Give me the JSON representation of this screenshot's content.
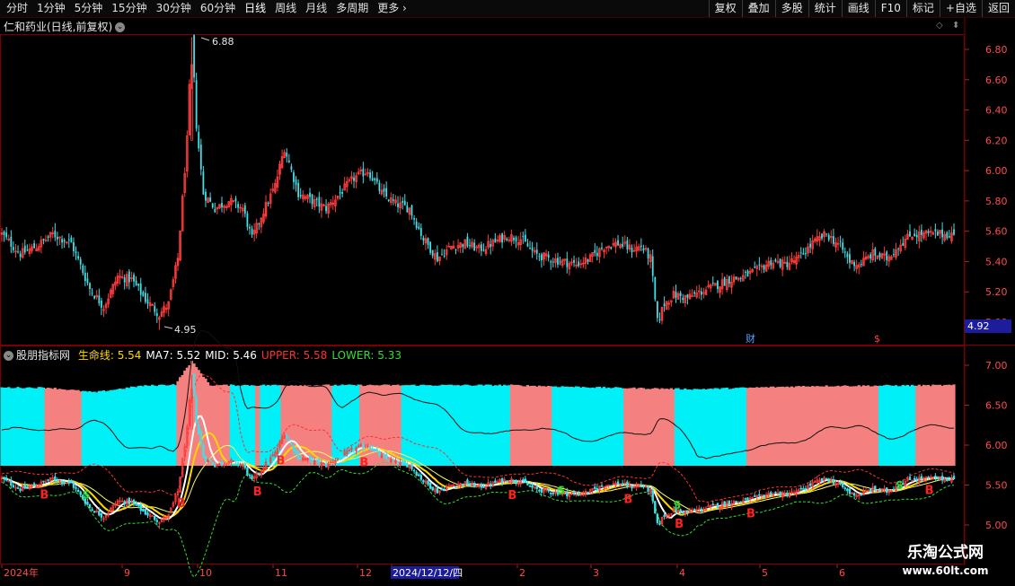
{
  "toolbar": {
    "periods": [
      "分时",
      "1分钟",
      "5分钟",
      "15分钟",
      "30分钟",
      "60分钟",
      "日线",
      "周线",
      "月线",
      "多周期",
      "更多"
    ],
    "active_period": "日线",
    "more_chevron": "›",
    "actions": [
      "复权",
      "叠加",
      "多股",
      "统计",
      "画线",
      "F10",
      "标记",
      "+自选",
      "返回"
    ]
  },
  "header": {
    "stock_title": "仁和药业(日线,前复权)",
    "dropdown_icon": "chevron-down-icon",
    "high_label": "6.88",
    "low_label": "4.95",
    "last_price": "4.92",
    "event_markers": [
      "财",
      "$"
    ]
  },
  "indicator": {
    "name": "股朋指标网",
    "values": [
      {
        "label": "生命线:",
        "value": "5.54",
        "color": "#ffd700"
      },
      {
        "label": "MA7:",
        "value": "5.52",
        "color": "#ffffff"
      },
      {
        "label": "MID:",
        "value": "5.46",
        "color": "#ffffff"
      },
      {
        "label": "UPPER:",
        "value": "5.58",
        "color": "#ff3030"
      },
      {
        "label": "LOWER:",
        "value": "5.33",
        "color": "#30e030"
      }
    ],
    "signal_B": "B",
    "signal_S": "S"
  },
  "x_axis": {
    "labels": [
      "2024年",
      "9",
      "10",
      "11",
      "12",
      "2024/12/12/四",
      "2",
      "3",
      "4",
      "5",
      "6"
    ]
  },
  "colors": {
    "up": "#ff3b3b",
    "down": "#3fe0e8",
    "cyan_band": "#00f0f8",
    "pink_band": "#f58080",
    "life_line": "#ffd700"
  },
  "watermark": {
    "title": "乐淘公式网",
    "url": "www.60lt.com"
  },
  "chart_data": [
    {
      "type": "candlestick",
      "title": "仁和药业(日线,前复权)",
      "y_ticks": [
        "6.80",
        "6.60",
        "6.40",
        "6.20",
        "6.00",
        "5.80",
        "5.60",
        "5.40",
        "5.20",
        "5.00"
      ],
      "ylim": [
        4.85,
        7.0
      ],
      "close_path": [
        {
          "i": 0,
          "v": 5.58
        },
        {
          "i": 8,
          "v": 5.45
        },
        {
          "i": 15,
          "v": 5.5
        },
        {
          "i": 22,
          "v": 5.58
        },
        {
          "i": 30,
          "v": 5.52
        },
        {
          "i": 38,
          "v": 5.22
        },
        {
          "i": 44,
          "v": 5.1
        },
        {
          "i": 50,
          "v": 5.3
        },
        {
          "i": 56,
          "v": 5.28
        },
        {
          "i": 62,
          "v": 5.15
        },
        {
          "i": 68,
          "v": 5.05
        },
        {
          "i": 72,
          "v": 5.12
        },
        {
          "i": 76,
          "v": 5.42
        },
        {
          "i": 80,
          "v": 6.2
        },
        {
          "i": 82,
          "v": 6.88
        },
        {
          "i": 84,
          "v": 6.3
        },
        {
          "i": 87,
          "v": 5.85
        },
        {
          "i": 92,
          "v": 5.75
        },
        {
          "i": 98,
          "v": 5.8
        },
        {
          "i": 104,
          "v": 5.75
        },
        {
          "i": 108,
          "v": 5.55
        },
        {
          "i": 112,
          "v": 5.7
        },
        {
          "i": 118,
          "v": 5.9
        },
        {
          "i": 122,
          "v": 6.15
        },
        {
          "i": 128,
          "v": 5.85
        },
        {
          "i": 134,
          "v": 5.8
        },
        {
          "i": 140,
          "v": 5.75
        },
        {
          "i": 146,
          "v": 5.85
        },
        {
          "i": 152,
          "v": 5.95
        },
        {
          "i": 158,
          "v": 6.0
        },
        {
          "i": 164,
          "v": 5.85
        },
        {
          "i": 170,
          "v": 5.78
        },
        {
          "i": 176,
          "v": 5.75
        },
        {
          "i": 182,
          "v": 5.55
        },
        {
          "i": 188,
          "v": 5.42
        },
        {
          "i": 194,
          "v": 5.5
        },
        {
          "i": 200,
          "v": 5.52
        },
        {
          "i": 206,
          "v": 5.48
        },
        {
          "i": 212,
          "v": 5.52
        },
        {
          "i": 218,
          "v": 5.57
        },
        {
          "i": 224,
          "v": 5.55
        },
        {
          "i": 230,
          "v": 5.45
        },
        {
          "i": 236,
          "v": 5.42
        },
        {
          "i": 242,
          "v": 5.4
        },
        {
          "i": 248,
          "v": 5.38
        },
        {
          "i": 254,
          "v": 5.42
        },
        {
          "i": 260,
          "v": 5.5
        },
        {
          "i": 266,
          "v": 5.52
        },
        {
          "i": 272,
          "v": 5.48
        },
        {
          "i": 276,
          "v": 5.5
        },
        {
          "i": 280,
          "v": 5.42
        },
        {
          "i": 283,
          "v": 5.0
        },
        {
          "i": 286,
          "v": 5.12
        },
        {
          "i": 290,
          "v": 5.18
        },
        {
          "i": 296,
          "v": 5.16
        },
        {
          "i": 302,
          "v": 5.2
        },
        {
          "i": 308,
          "v": 5.24
        },
        {
          "i": 314,
          "v": 5.28
        },
        {
          "i": 320,
          "v": 5.3
        },
        {
          "i": 326,
          "v": 5.34
        },
        {
          "i": 332,
          "v": 5.4
        },
        {
          "i": 338,
          "v": 5.38
        },
        {
          "i": 344,
          "v": 5.42
        },
        {
          "i": 350,
          "v": 5.52
        },
        {
          "i": 356,
          "v": 5.58
        },
        {
          "i": 362,
          "v": 5.5
        },
        {
          "i": 366,
          "v": 5.4
        },
        {
          "i": 370,
          "v": 5.38
        },
        {
          "i": 376,
          "v": 5.45
        },
        {
          "i": 382,
          "v": 5.42
        },
        {
          "i": 388,
          "v": 5.52
        },
        {
          "i": 393,
          "v": 5.58
        }
      ]
    },
    {
      "type": "area",
      "title": "股朋指标网",
      "y_ticks": [
        "7.00",
        "6.50",
        "6.00",
        "5.50",
        "5.00"
      ],
      "ylim": [
        4.7,
        7.2
      ],
      "bands": [
        {
          "from": 0,
          "to": 19,
          "color": "cyan"
        },
        {
          "from": 19,
          "to": 35,
          "color": "pink"
        },
        {
          "from": 35,
          "to": 76,
          "color": "cyan"
        },
        {
          "from": 76,
          "to": 99,
          "color": "pink"
        },
        {
          "from": 99,
          "to": 110,
          "color": "cyan"
        },
        {
          "from": 110,
          "to": 112,
          "color": "pink"
        },
        {
          "from": 112,
          "to": 121,
          "color": "cyan"
        },
        {
          "from": 121,
          "to": 143,
          "color": "pink"
        },
        {
          "from": 143,
          "to": 155,
          "color": "cyan"
        },
        {
          "from": 155,
          "to": 173,
          "color": "pink"
        },
        {
          "from": 173,
          "to": 220,
          "color": "cyan"
        },
        {
          "from": 220,
          "to": 238,
          "color": "pink"
        },
        {
          "from": 238,
          "to": 269,
          "color": "cyan"
        },
        {
          "from": 269,
          "to": 291,
          "color": "pink"
        },
        {
          "from": 291,
          "to": 322,
          "color": "cyan"
        },
        {
          "from": 322,
          "to": 379,
          "color": "pink"
        },
        {
          "from": 379,
          "to": 395,
          "color": "cyan"
        },
        {
          "from": 395,
          "to": 412,
          "color": "pink"
        }
      ],
      "band_heights": [
        {
          "i": 0,
          "v": 6.72
        },
        {
          "i": 20,
          "v": 6.72
        },
        {
          "i": 40,
          "v": 6.66
        },
        {
          "i": 60,
          "v": 6.74
        },
        {
          "i": 75,
          "v": 6.76
        },
        {
          "i": 82,
          "v": 7.05
        },
        {
          "i": 90,
          "v": 6.75
        },
        {
          "i": 110,
          "v": 6.75
        },
        {
          "i": 140,
          "v": 6.75
        },
        {
          "i": 175,
          "v": 6.75
        },
        {
          "i": 220,
          "v": 6.75
        },
        {
          "i": 260,
          "v": 6.72
        },
        {
          "i": 300,
          "v": 6.7
        },
        {
          "i": 350,
          "v": 6.74
        },
        {
          "i": 412,
          "v": 6.75
        }
      ],
      "signals_B": [
        18,
        77,
        110,
        120,
        156,
        220,
        270,
        292,
        323,
        400
      ],
      "signals_S": [
        36,
        241,
        291,
        387
      ]
    }
  ]
}
